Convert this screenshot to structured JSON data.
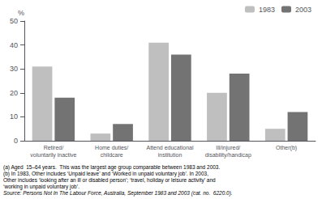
{
  "chart_data": {
    "type": "bar",
    "categories": [
      "Retired/\nvoluntarily inactive",
      "Home duties/\nchildcare",
      "Attend educational\ninstitution",
      "Ill/injured/\ndisability/handicap",
      "Other(b)"
    ],
    "series": [
      {
        "name": "1983",
        "color": "#c0bfbf",
        "values": [
          31,
          3,
          41,
          20,
          5
        ]
      },
      {
        "name": "2003",
        "color": "#737373",
        "values": [
          18,
          7,
          36,
          28,
          12
        ]
      }
    ],
    "ylabel": "%",
    "ylim": [
      0,
      50
    ],
    "yticks": [
      0,
      10,
      20,
      30,
      40,
      50
    ],
    "grid": false,
    "legend": "upper right",
    "annotations": [
      "(a) Aged  15–64 years.  This was the largest age group comparable between 1983 and 2003.",
      "(b) In 1983, Other includes ‘Unpaid leave’ and ‘Worked in unpaid voluntary job’. In 2003,",
      "Other includes ‘looking after an ill or disabled person’; ‘travel, holiday or leisure activity’ and",
      "‘working in unpaid voluntary job’.",
      "Source: Persons Not In The Labour Force, Australia, September 1983 and 2003 (cat. no.  6220.0)."
    ]
  }
}
